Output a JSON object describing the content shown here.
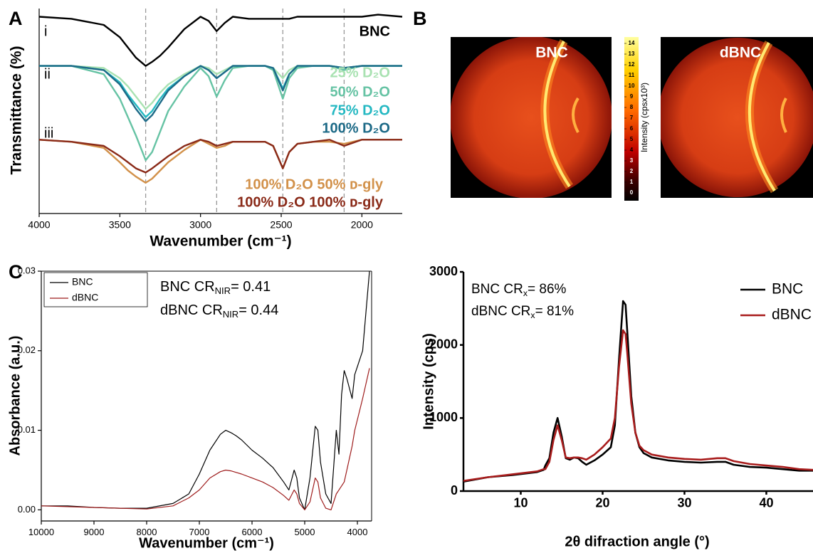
{
  "panel_labels": [
    "A",
    "B",
    "C"
  ],
  "chart_data": [
    {
      "type": "line",
      "x_label": "Wavenumber (cm⁻¹)",
      "y_label": "Transmittance (%)",
      "group_labels": [
        "i",
        "ii",
        "iii"
      ],
      "xlim": [
        4000,
        1750
      ],
      "ylim": [
        0,
        100
      ],
      "xticks": [
        4000,
        3500,
        3000,
        2500,
        2000
      ],
      "ref_lines": [
        3340,
        2900,
        2490,
        2110
      ],
      "x": [
        4000,
        3800,
        3600,
        3500,
        3450,
        3400,
        3340,
        3300,
        3250,
        3200,
        3100,
        3000,
        2950,
        2900,
        2850,
        2800,
        2700,
        2600,
        2550,
        2490,
        2450,
        2400,
        2300,
        2200,
        2110,
        2000,
        1900,
        1750
      ],
      "series": [
        {
          "name": "BNC",
          "color": "#000000",
          "values": [
            96,
            95,
            92,
            86,
            81,
            76,
            72,
            74,
            77,
            81,
            90,
            96,
            94,
            89,
            93,
            96,
            95,
            95,
            95,
            95,
            95,
            96,
            96,
            96,
            96,
            96,
            97,
            96
          ]
        },
        {
          "name": "25% D₂O",
          "color": "#a9e2b2",
          "values": [
            72,
            72,
            71,
            66,
            62,
            57,
            51,
            54,
            59,
            63,
            68,
            72,
            71,
            68,
            70,
            72,
            72,
            72,
            71,
            66,
            70,
            72,
            72,
            72,
            71,
            72,
            72,
            72
          ]
        },
        {
          "name": "50% D₂O",
          "color": "#66c3a4",
          "values": [
            72,
            72,
            68,
            56,
            47,
            38,
            26,
            30,
            40,
            50,
            62,
            71,
            67,
            57,
            65,
            71,
            72,
            72,
            70,
            56,
            66,
            71,
            72,
            72,
            70,
            72,
            72,
            72
          ]
        },
        {
          "name": "75% D₂O",
          "color": "#24b8c2",
          "values": [
            72,
            72,
            70,
            64,
            58,
            53,
            47,
            50,
            56,
            61,
            67,
            72,
            70,
            66,
            69,
            72,
            72,
            72,
            71,
            61,
            68,
            72,
            72,
            72,
            71,
            72,
            72,
            72
          ]
        },
        {
          "name": "100% D₂O",
          "color": "#1d6a87",
          "values": [
            72,
            72,
            70,
            63,
            57,
            51,
            45,
            48,
            54,
            60,
            67,
            72,
            70,
            66,
            69,
            72,
            72,
            72,
            71,
            60,
            68,
            72,
            72,
            72,
            71,
            72,
            72,
            72
          ]
        },
        {
          "name": "100% D₂O 50% ᴅ-gly",
          "color": "#d2914a",
          "values": [
            36,
            35,
            32,
            25,
            21,
            18,
            15,
            17,
            21,
            25,
            31,
            36,
            34,
            32,
            33,
            35,
            35,
            35,
            33,
            22,
            30,
            34,
            35,
            35,
            34,
            36,
            36,
            36
          ]
        },
        {
          "name": "100% D₂O 100% ᴅ-gly",
          "color": "#8a2a18",
          "values": [
            36,
            35,
            33,
            28,
            25,
            22,
            20,
            22,
            25,
            28,
            33,
            36,
            35,
            33,
            34,
            35,
            35,
            35,
            33,
            22,
            30,
            34,
            35,
            36,
            33,
            36,
            36,
            36
          ]
        }
      ]
    },
    {
      "type": "image",
      "images": [
        "BNC",
        "dBNC"
      ],
      "colorbar": {
        "label": "Intensity (cpsx10³)",
        "clim": [
          0,
          14
        ],
        "ticks": [
          0,
          1,
          2,
          3,
          4,
          5,
          6,
          7,
          8,
          9,
          10,
          11,
          12,
          13,
          14
        ]
      }
    },
    {
      "type": "line",
      "x_label": "Wavenumber (cm⁻¹)",
      "y_label": "Absorbance (a.u.)",
      "xlim": [
        10000,
        3730
      ],
      "ylim": [
        -0.0014,
        0.03
      ],
      "xticks": [
        10000,
        9000,
        8000,
        7000,
        6000,
        5000,
        4000
      ],
      "yticks": [
        {
          "value": 0,
          "label": "0.00"
        },
        {
          "value": 0.01,
          "label": "0.01"
        },
        {
          "value": 0.02,
          "label": "0.02"
        },
        {
          "value": 0.03,
          "label": "0.03"
        }
      ],
      "annotations": [
        {
          "text": "BNC CR",
          "sub": "NIR",
          "tail": "= 0.41"
        },
        {
          "text": "dBNC CR",
          "sub": "NIR",
          "tail": "= 0.44"
        }
      ],
      "x": [
        10000,
        9500,
        9000,
        8500,
        8000,
        7500,
        7200,
        7000,
        6800,
        6600,
        6500,
        6400,
        6300,
        6200,
        6000,
        5800,
        5600,
        5400,
        5300,
        5200,
        5150,
        5100,
        5000,
        4900,
        4800,
        4750,
        4700,
        4600,
        4500,
        4400,
        4350,
        4300,
        4250,
        4200,
        4100,
        4050,
        3900,
        3770
      ],
      "series": [
        {
          "name": "BNC",
          "color": "#000000",
          "values": [
            0.0005,
            0.0005,
            0.0003,
            0.0002,
            0.0002,
            0.0008,
            0.002,
            0.0045,
            0.0075,
            0.0095,
            0.01,
            0.0097,
            0.0093,
            0.0088,
            0.0075,
            0.0065,
            0.0053,
            0.0035,
            0.0025,
            0.005,
            0.004,
            0.0015,
            0,
            0.004,
            0.0105,
            0.01,
            0.006,
            0.002,
            0.0008,
            0.01,
            0.007,
            0.0145,
            0.0175,
            0.0165,
            0.014,
            0.017,
            0.02,
            0.03
          ]
        },
        {
          "name": "dBNC",
          "color": "#9e1c1c",
          "values": [
            0.0005,
            0.0004,
            0.0003,
            0.0002,
            0.0001,
            0.0005,
            0.0015,
            0.0025,
            0.004,
            0.0048,
            0.005,
            0.0049,
            0.0047,
            0.0045,
            0.004,
            0.0035,
            0.0028,
            0.0018,
            0.0012,
            0.0025,
            0.002,
            0.0008,
            0,
            0.001,
            0.004,
            0.0035,
            0.0015,
            0.0002,
            0,
            0.002,
            0.0025,
            0.003,
            0.0035,
            0.005,
            0.008,
            0.01,
            0.014,
            0.0178
          ]
        }
      ]
    },
    {
      "type": "line",
      "x_label": "2θ difraction angle (°)",
      "y_label": "Intensity (cps)",
      "xlim": [
        3,
        45.7
      ],
      "ylim": [
        0,
        3000
      ],
      "xticks": [
        10,
        20,
        30,
        40
      ],
      "yticks": [
        0,
        1000,
        2000,
        3000
      ],
      "annotations": [
        {
          "text": "BNC CR",
          "sub": "x",
          "tail": "= 86%"
        },
        {
          "text": "dBNC CR",
          "sub": "x",
          "tail": "= 81%"
        }
      ],
      "x": [
        3,
        6,
        9,
        12,
        12.8,
        13,
        13.5,
        14,
        14.5,
        15,
        15.5,
        16,
        16.5,
        17,
        17.5,
        18,
        19,
        20,
        21,
        21.5,
        22,
        22.5,
        22.8,
        23,
        23.5,
        24,
        24.5,
        25,
        26,
        28,
        30,
        32,
        34,
        35,
        36,
        38,
        40,
        42,
        44,
        45.7
      ],
      "series": [
        {
          "name": "BNC",
          "color": "#000000",
          "values": [
            130,
            190,
            220,
            260,
            290,
            350,
            450,
            800,
            1000,
            750,
            450,
            430,
            460,
            450,
            400,
            360,
            420,
            500,
            600,
            900,
            1800,
            2600,
            2550,
            2200,
            1300,
            800,
            600,
            520,
            460,
            420,
            400,
            390,
            400,
            400,
            360,
            330,
            320,
            300,
            280,
            280
          ]
        },
        {
          "name": "dBNC",
          "color": "#a81c1c",
          "values": [
            140,
            190,
            230,
            270,
            300,
            300,
            400,
            700,
            900,
            700,
            460,
            450,
            460,
            460,
            450,
            430,
            500,
            600,
            720,
            1000,
            1700,
            2200,
            2150,
            1900,
            1200,
            800,
            620,
            560,
            500,
            460,
            440,
            430,
            450,
            450,
            410,
            370,
            350,
            330,
            300,
            290
          ]
        }
      ]
    }
  ]
}
